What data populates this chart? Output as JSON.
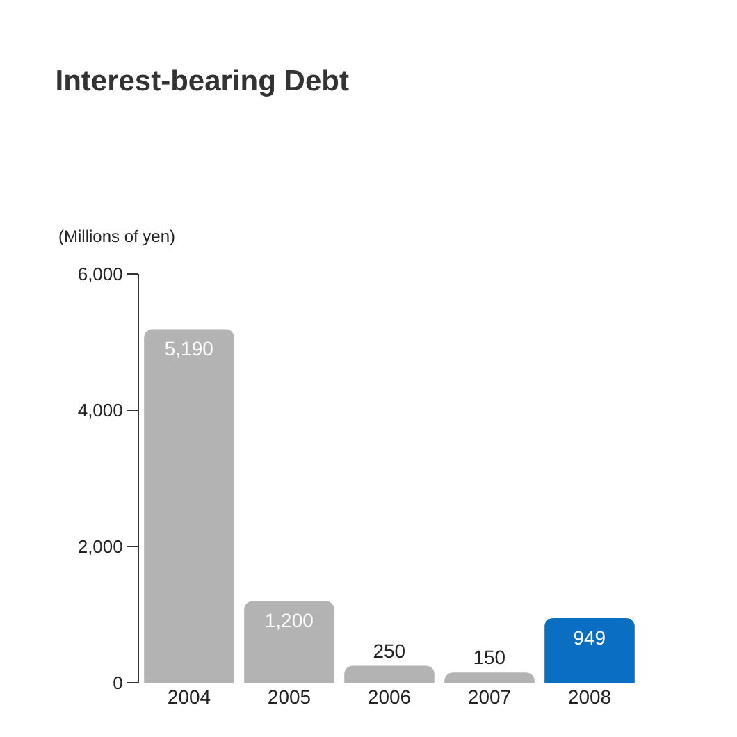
{
  "chart_data": {
    "type": "bar",
    "title": "Interest-bearing Debt",
    "ylabel": "(Millions of yen)",
    "categories": [
      "2004",
      "2005",
      "2006",
      "2007",
      "2008"
    ],
    "values": [
      5190,
      1200,
      250,
      150,
      949
    ],
    "colors": [
      "#b3b3b3",
      "#b3b3b3",
      "#b3b3b3",
      "#b3b3b3",
      "#0a6fc2"
    ],
    "ylim": [
      0,
      6000
    ],
    "yticks": [
      {
        "value": 0,
        "label": "0"
      },
      {
        "value": 2000,
        "label": "2,000"
      },
      {
        "value": 4000,
        "label": "4,000"
      },
      {
        "value": 6000,
        "label": "6,000"
      }
    ],
    "value_labels": [
      "5,190",
      "1,200",
      "250",
      "150",
      "949"
    ]
  }
}
